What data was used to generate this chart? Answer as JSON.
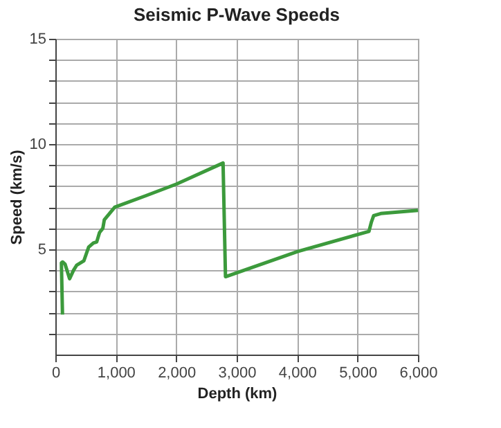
{
  "chart_data": {
    "type": "line",
    "title": "Seismic P-Wave Speeds",
    "xlabel": "Depth (km)",
    "ylabel": "Speed (km/s)",
    "x": [
      118,
      100,
      120,
      160,
      236,
      300,
      354,
      471,
      550,
      629,
      684,
      731,
      786,
      810,
      983,
      1500,
      2005,
      2775,
      2815,
      4010,
      5189,
      5230,
      5267,
      5385,
      6000
    ],
    "series": [
      {
        "color": "#3c9a3c",
        "values": [
          1.9,
          4.35,
          4.4,
          4.3,
          3.6,
          4.0,
          4.25,
          4.45,
          5.1,
          5.3,
          5.35,
          5.8,
          6.0,
          6.4,
          7.0,
          7.55,
          8.1,
          9.1,
          3.7,
          4.9,
          5.85,
          6.3,
          6.6,
          6.7,
          6.85
        ]
      }
    ],
    "xlim": [
      0,
      6000
    ],
    "xticks": [
      0,
      {
        "value": 1000,
        "label": "1,000"
      },
      {
        "value": 2000,
        "label": "2,000"
      },
      {
        "value": 3000,
        "label": "3,000"
      },
      {
        "value": 4000,
        "label": "4,000"
      },
      {
        "value": 5000,
        "label": "5,000"
      },
      {
        "value": 6000,
        "label": "6,000"
      }
    ],
    "ylim": [
      0,
      15
    ],
    "yticks": [
      {
        "value": 1,
        "label": null
      },
      {
        "value": 2,
        "label": null
      },
      {
        "value": 3,
        "label": null
      },
      {
        "value": 4,
        "label": null
      },
      5,
      {
        "value": 6,
        "label": null
      },
      {
        "value": 7,
        "label": null
      },
      {
        "value": 8,
        "label": null
      },
      {
        "value": 9,
        "label": null
      },
      10,
      {
        "value": 11,
        "label": null
      },
      {
        "value": 12,
        "label": null
      },
      {
        "value": 13,
        "label": null
      },
      {
        "value": 14,
        "label": null
      },
      15
    ],
    "grid": true,
    "marker": "none",
    "line_style": "solid"
  }
}
